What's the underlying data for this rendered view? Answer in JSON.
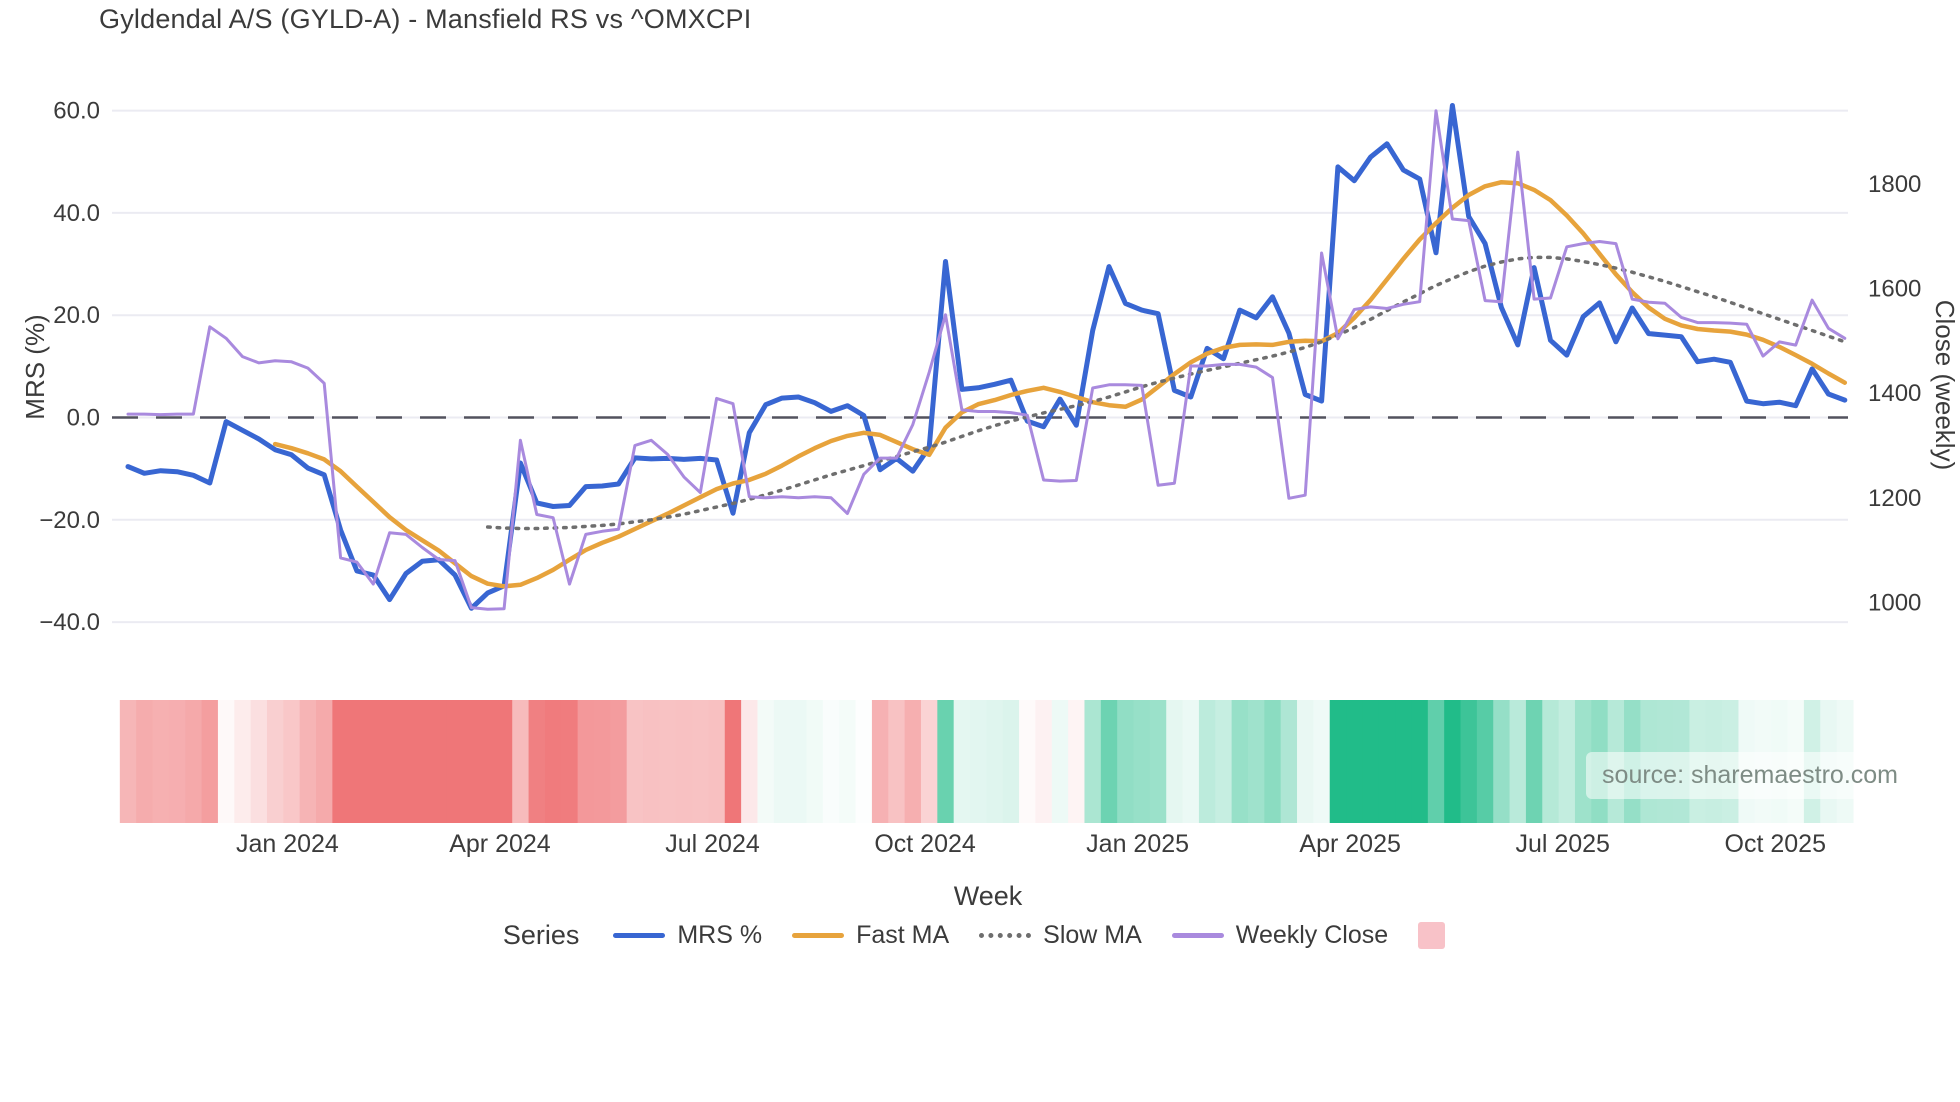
{
  "header": {
    "title": "Gyldendal A/S (GYLD-A) - Mansfield RS vs ^OMXCPI"
  },
  "source": {
    "text": "source: sharemaestro.com"
  },
  "legend": {
    "title": "Series",
    "items": [
      {
        "label": "MRS %",
        "style": "solid",
        "color": "#3866d2"
      },
      {
        "label": "Fast MA",
        "style": "solid",
        "color": "#e7a33c"
      },
      {
        "label": "Slow MA",
        "style": "dotted",
        "color": "#6e6e6e"
      },
      {
        "label": "Weekly Close",
        "style": "solid",
        "color": "#a98ade"
      },
      {
        "label": "",
        "style": "square",
        "color": "#f8c2c8"
      }
    ]
  },
  "chart_data": {
    "type": "line",
    "title": "Gyldendal A/S (GYLD-A) - Mansfield RS vs ^OMXCPI",
    "xlabel": "Week",
    "ylabel_left": "MRS (%)",
    "ylabel_right": "Close (weekly)",
    "grid": true,
    "legend_position": "bottom",
    "ylim_left": [
      -45,
      63
    ],
    "ylim_right": [
      950,
      1950
    ],
    "y_ticks_left": [
      "60.0",
      "40.0",
      "20.0",
      "0.0",
      "−20.0",
      "−40.0"
    ],
    "y_tick_values_left": [
      60,
      40,
      20,
      0,
      -20,
      -40
    ],
    "y_ticks_right": [
      "1800",
      "1600",
      "1400",
      "1200",
      "1000"
    ],
    "y_tick_values_right": [
      1800,
      1600,
      1400,
      1200,
      1000
    ],
    "zero_line": 0,
    "x_ticks": [
      {
        "label": "Jan 2024",
        "week": 9.75
      },
      {
        "label": "Apr 2024",
        "week": 22.75
      },
      {
        "label": "Jul 2024",
        "week": 35.75
      },
      {
        "label": "Oct 2024",
        "week": 48.75
      },
      {
        "label": "Jan 2025",
        "week": 61.75
      },
      {
        "label": "Apr 2025",
        "week": 74.75
      },
      {
        "label": "Jul 2025",
        "week": 87.75
      },
      {
        "label": "Oct 2025",
        "week": 100.75
      }
    ],
    "weeks_total": 106,
    "series": [
      {
        "name": "MRS %",
        "axis": "left",
        "color": "#3866d2",
        "width": 5,
        "dash": "solid",
        "values": [
          -9.6,
          -10.9,
          -10.4,
          -10.6,
          -11.3,
          -12.8,
          -0.8,
          -2.5,
          -4.2,
          -6.3,
          -7.3,
          -9.9,
          -11.2,
          -22,
          -30,
          -30.8,
          -35.6,
          -30.5,
          -28.1,
          -27.8,
          -30.8,
          -37.3,
          -34.3,
          -32.9,
          -8.9,
          -16.7,
          -17.4,
          -17.2,
          -13.5,
          -13.4,
          -13,
          -7.9,
          -8.1,
          -8,
          -8.2,
          -8,
          -8.3,
          -18.7,
          -3,
          2.5,
          3.8,
          4,
          2.9,
          1.2,
          2.3,
          0.4,
          -10.2,
          -8,
          -10.5,
          -5.8,
          30.5,
          5.5,
          5.8,
          6.5,
          7.3,
          -0.7,
          -1.8,
          3.6,
          -1.5,
          17,
          29.5,
          22.3,
          21,
          20.3,
          5.3,
          4,
          13.5,
          11.5,
          21,
          19.5,
          23.6,
          16.5,
          4.5,
          3.2,
          49,
          46.3,
          50.9,
          53.5,
          48.4,
          46.6,
          32.2,
          61,
          39.3,
          34,
          21.5,
          14.2,
          29.3,
          15.1,
          12.2,
          19.7,
          22.4,
          14.8,
          21.4,
          16.4,
          16.1,
          15.8,
          10.9,
          11.4,
          10.8,
          3.2,
          2.7,
          3,
          2.3,
          9.5,
          4.6,
          3.4
        ]
      },
      {
        "name": "Fast MA",
        "axis": "left",
        "color": "#e7a33c",
        "width": 4.5,
        "dash": "solid",
        "values": [
          null,
          null,
          null,
          null,
          null,
          null,
          null,
          null,
          null,
          -5.2,
          -6,
          -7,
          -8.2,
          -10.5,
          -13.5,
          -16.5,
          -19.5,
          -22,
          -24,
          -26,
          -28.5,
          -31,
          -32.5,
          -33,
          -32.7,
          -31.4,
          -29.8,
          -27.8,
          -25.9,
          -24.5,
          -23.3,
          -21.8,
          -20.3,
          -18.8,
          -17.2,
          -15.6,
          -14,
          -12.9,
          -12.2,
          -11,
          -9.4,
          -7.6,
          -6,
          -4.6,
          -3.6,
          -3,
          -3.4,
          -4.8,
          -6.2,
          -7.3,
          -2,
          1,
          2.6,
          3.4,
          4.4,
          5.2,
          5.8,
          5,
          4,
          3,
          2.4,
          2.1,
          3.5,
          6,
          8.5,
          10.8,
          12.5,
          13.6,
          14.2,
          14.3,
          14.2,
          14.8,
          15,
          14.9,
          16.5,
          19.5,
          23,
          27,
          31,
          34.8,
          38,
          41,
          43.5,
          45.2,
          46,
          45.8,
          44.5,
          42.5,
          39.5,
          36,
          32,
          28,
          24.5,
          21.5,
          19.3,
          18,
          17.3,
          17,
          16.8,
          16.2,
          15.2,
          13.8,
          12.2,
          10.5,
          8.6,
          6.8
        ]
      },
      {
        "name": "Slow MA",
        "axis": "left",
        "color": "#6e6e6e",
        "width": 3.5,
        "dash": "dotted",
        "values": [
          null,
          null,
          null,
          null,
          null,
          null,
          null,
          null,
          null,
          null,
          null,
          null,
          null,
          null,
          null,
          null,
          null,
          null,
          null,
          null,
          null,
          null,
          -21.4,
          -21.6,
          -21.7,
          -21.7,
          -21.6,
          -21.5,
          -21.3,
          -21.1,
          -20.8,
          -20.4,
          -20,
          -19.5,
          -18.9,
          -18.2,
          -17.5,
          -16.8,
          -16,
          -15.1,
          -14.2,
          -13.2,
          -12.2,
          -11.2,
          -10.3,
          -9.4,
          -8.5,
          -7.6,
          -6.7,
          -5.8,
          -4.8,
          -3.7,
          -2.6,
          -1.6,
          -0.7,
          0.1,
          0.9,
          1.6,
          2.3,
          3.1,
          4,
          5,
          6,
          6.9,
          7.7,
          8.5,
          9.2,
          9.9,
          10.6,
          11.3,
          12,
          12.8,
          13.7,
          14.8,
          16.1,
          17.6,
          19.2,
          20.9,
          22.6,
          24.2,
          25.8,
          27.2,
          28.5,
          29.6,
          30.4,
          31,
          31.3,
          31.3,
          31,
          30.5,
          29.9,
          29.2,
          28.4,
          27.5,
          26.6,
          25.6,
          24.6,
          23.6,
          22.5,
          21.4,
          20.3,
          19.2,
          18.1,
          17,
          15.9,
          14.8
        ]
      },
      {
        "name": "Weekly Close",
        "axis": "right",
        "color": "#a98ade",
        "width": 3,
        "dash": "solid",
        "values": [
          1360,
          1360,
          1359,
          1360,
          1360,
          1527,
          1505,
          1470,
          1458,
          1462,
          1460,
          1448,
          1419,
          1085,
          1077,
          1035,
          1133,
          1130,
          1105,
          1082,
          1080,
          990,
          987,
          988,
          1310,
          1168,
          1162,
          1035,
          1130,
          1136,
          1140,
          1300,
          1310,
          1283,
          1240,
          1210,
          1390,
          1380,
          1202,
          1200,
          1202,
          1200,
          1202,
          1200,
          1170,
          1245,
          1276,
          1276,
          1340,
          1440,
          1550,
          1368,
          1365,
          1365,
          1363,
          1358,
          1234,
          1232,
          1233,
          1410,
          1416,
          1416,
          1415,
          1224,
          1228,
          1452,
          1452,
          1455,
          1455,
          1450,
          1430,
          1199,
          1205,
          1668,
          1504,
          1560,
          1565,
          1562,
          1570,
          1575,
          1940,
          1733,
          1730,
          1577,
          1575,
          1861,
          1580,
          1582,
          1680,
          1686,
          1690,
          1686,
          1580,
          1574,
          1572,
          1545,
          1535,
          1535,
          1534,
          1532,
          1471,
          1498,
          1492,
          1578,
          1524,
          1505
        ]
      }
    ],
    "heatmap_strip": {
      "description": "weekly red-green strip derived from MRS % values",
      "positive_color": "#21bc89",
      "negative_color": "#ef7678",
      "positive_cap": 45,
      "negative_cap": 18
    },
    "colors": {
      "grid": "#ebebf2",
      "zero_dash": "#52525e",
      "text": "#3b3b3b"
    }
  }
}
